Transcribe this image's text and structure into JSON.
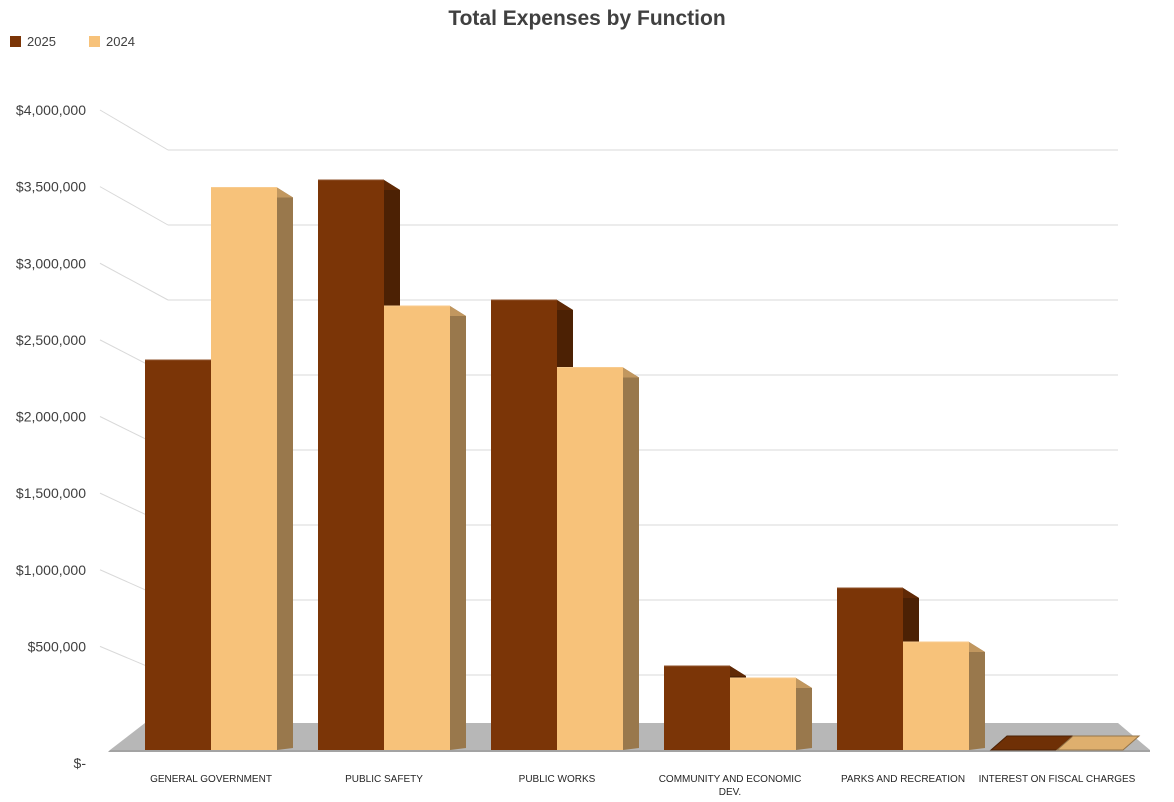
{
  "chart_data": {
    "type": "bar",
    "title": "Total Expenses by Function",
    "xlabel": "",
    "ylabel": "",
    "categories": [
      [
        "GENERAL GOVERNMENT"
      ],
      [
        "PUBLIC SAFETY"
      ],
      [
        "PUBLIC WORKS"
      ],
      [
        "COMMUNITY AND ECONOMIC",
        "DEV."
      ],
      [
        "PARKS AND RECREATION"
      ],
      [
        "INTEREST ON FISCAL CHARGES"
      ]
    ],
    "series": [
      {
        "name": "2025",
        "color": "#7B3507",
        "values": [
          2600000,
          3800000,
          3000000,
          560000,
          1080000,
          10000
        ]
      },
      {
        "name": "2024",
        "color": "#F7C27A",
        "values": [
          3750000,
          2960000,
          2550000,
          480000,
          720000,
          10000
        ]
      }
    ],
    "ylim": [
      0,
      4000000
    ],
    "yticks": [
      0,
      500000,
      1000000,
      1500000,
      2000000,
      2500000,
      3000000,
      3500000,
      4000000
    ],
    "ytick_labels": [
      "$-",
      "$500,000",
      "$1,000,000",
      "$1,500,000",
      "$2,000,000",
      "$2,500,000",
      "$3,000,000",
      "$3,500,000",
      "$4,000,000"
    ],
    "grid": true,
    "legend_position": "top-left"
  }
}
